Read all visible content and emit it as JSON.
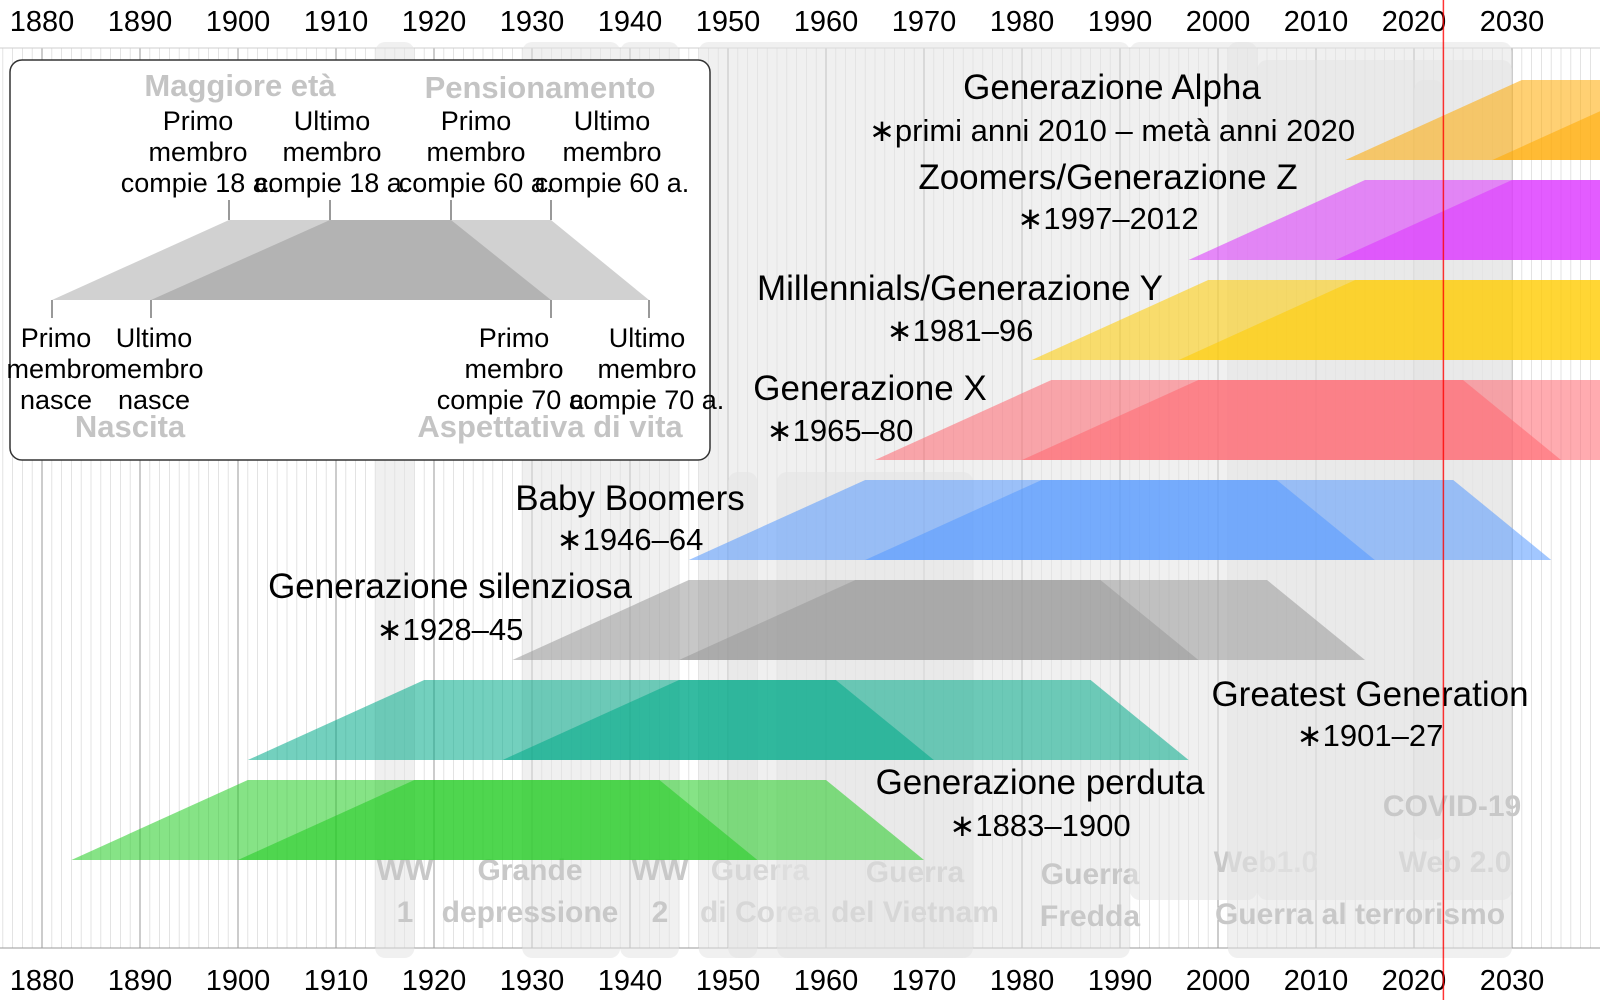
{
  "axis": {
    "tick_labels": [
      "1880",
      "1890",
      "1900",
      "1910",
      "1920",
      "1930",
      "1940",
      "1950",
      "1960",
      "1970",
      "1980",
      "1990",
      "2000",
      "2010",
      "2020",
      "2030"
    ]
  },
  "current_year": 2023,
  "colors": {
    "current_year_line": "#ff0000",
    "event_band": "#e3e3e3",
    "event_text": "#c8c8c8",
    "legend_dark": "#b3b3b3",
    "legend_light": "#cccccc"
  },
  "generations": [
    {
      "name": "Generazione Alpha",
      "years": "∗primi anni 2010 – metà anni 2020",
      "first_birth": 2013,
      "last_birth": 2028,
      "color": "#ffaa00"
    },
    {
      "name": "Zoomers/Generazione Z",
      "years": "∗1997–2012",
      "first_birth": 1997,
      "last_birth": 2012,
      "color": "#dd33ff"
    },
    {
      "name": "Millennials/Generazione Y",
      "years": "∗1981–96",
      "first_birth": 1981,
      "last_birth": 1996,
      "color": "#ffcc00"
    },
    {
      "name": "Generazione X",
      "years": "∗1965–80",
      "first_birth": 1965,
      "last_birth": 1980,
      "color": "#ff6670"
    },
    {
      "name": "Baby Boomers",
      "years": "∗1946–64",
      "first_birth": 1946,
      "last_birth": 1964,
      "color": "#5599ff"
    },
    {
      "name": "Generazione silenziosa",
      "years": "∗1928–45",
      "first_birth": 1928,
      "last_birth": 1945,
      "color": "#999999"
    },
    {
      "name": "Greatest Generation",
      "years": "∗1901–27",
      "first_birth": 1901,
      "last_birth": 1927,
      "color": "#00aa88"
    },
    {
      "name": "Generazione perduta",
      "years": "∗1883–1900",
      "first_birth": 1883,
      "last_birth": 1900,
      "color": "#22cc22"
    }
  ],
  "events": [
    {
      "id": "ww1",
      "lines": [
        "WW",
        "1"
      ],
      "start": 1914,
      "end": 1918
    },
    {
      "id": "great-depression",
      "lines": [
        "Grande",
        "depressione"
      ],
      "start": 1929,
      "end": 1939
    },
    {
      "id": "ww2",
      "lines": [
        "WW",
        "2"
      ],
      "start": 1939,
      "end": 1945
    },
    {
      "id": "korean-war",
      "lines": [
        "Guerra",
        "di Corea"
      ],
      "start": 1950,
      "end": 1953
    },
    {
      "id": "vietnam-war",
      "lines": [
        "Guerra",
        "del Vietnam"
      ],
      "start": 1955,
      "end": 1975
    },
    {
      "id": "cold-war",
      "lines": [
        "Guerra",
        "Fredda"
      ],
      "start": 1947,
      "end": 1991
    },
    {
      "id": "web1",
      "lines": [
        "Web1.0"
      ],
      "start": 1991,
      "end": 2004
    },
    {
      "id": "web2",
      "lines": [
        "Web 2.0"
      ],
      "start": 2004,
      "end": 2030
    },
    {
      "id": "war-on-terror",
      "lines": [
        "Guerra al terrorismo"
      ],
      "start": 2001,
      "end": 2030
    },
    {
      "id": "covid",
      "lines": [
        "COVID-19"
      ],
      "start": 2020,
      "end": 2023
    }
  ],
  "legend": {
    "heading_adulthood": "Maggiore età",
    "heading_retirement": "Pensionamento",
    "heading_birth": "Nascita",
    "heading_life_expectancy": "Aspettativa di vita",
    "top_labels": [
      [
        "Primo",
        "membro",
        "compie 18 a."
      ],
      [
        "Ultimo",
        "membro",
        "compie 18 a."
      ],
      [
        "Primo",
        "membro",
        "compie 60 a."
      ],
      [
        "Ultimo",
        "membro",
        "compie 60 a."
      ]
    ],
    "bottom_labels": [
      [
        "Primo",
        "membro",
        "nasce"
      ],
      [
        "Ultimo",
        "membro",
        "nasce"
      ],
      [
        "Primo",
        "membro",
        "compie 70 a."
      ],
      [
        "Ultimo",
        "membro",
        "compie 70 a."
      ]
    ]
  }
}
